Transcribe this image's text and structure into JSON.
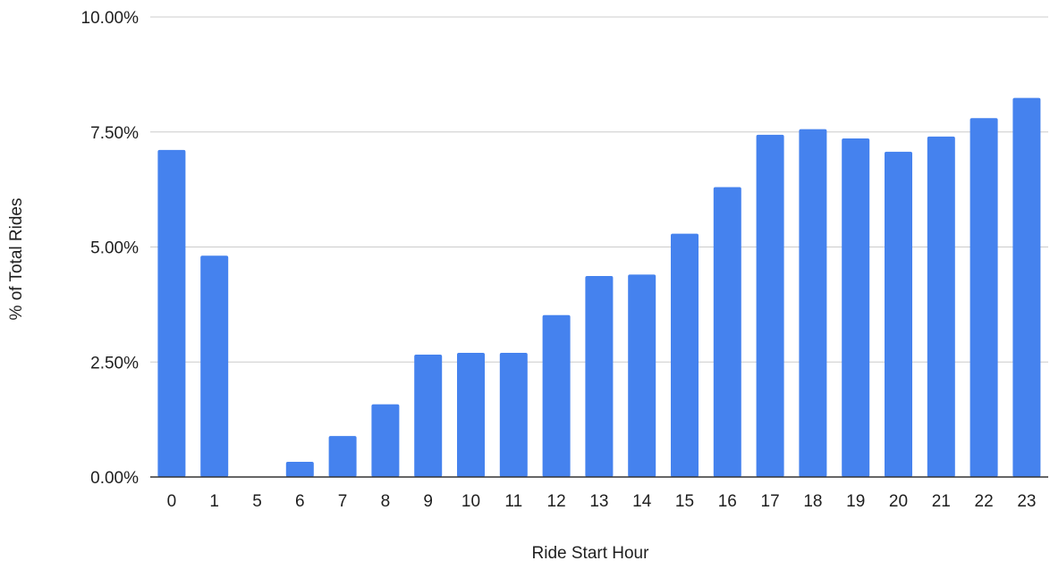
{
  "chart_data": {
    "type": "bar",
    "title": "",
    "xlabel": "Ride Start Hour",
    "ylabel": "% of Total Rides",
    "categories": [
      "0",
      "1",
      "5",
      "6",
      "7",
      "8",
      "9",
      "10",
      "11",
      "12",
      "13",
      "14",
      "15",
      "16",
      "17",
      "18",
      "19",
      "20",
      "21",
      "22",
      "23"
    ],
    "series": [
      {
        "values": [
          7.11,
          4.81,
          0.0,
          0.33,
          0.89,
          1.58,
          2.66,
          2.7,
          2.7,
          3.52,
          4.37,
          4.4,
          5.29,
          6.3,
          7.44,
          7.56,
          7.36,
          7.07,
          7.4,
          7.8,
          8.24
        ],
        "color": "#4582ee"
      }
    ],
    "ylim": [
      0,
      10
    ],
    "yticks": [
      {
        "value": 0,
        "label": "0.00%"
      },
      {
        "value": 2.5,
        "label": "2.50%"
      },
      {
        "value": 5,
        "label": "5.00%"
      },
      {
        "value": 7.5,
        "label": "7.50%"
      },
      {
        "value": 10,
        "label": "10.00%"
      }
    ],
    "grid": true,
    "legend": "none",
    "colors": {
      "bar": "#4582ee",
      "grid": "#cccccc",
      "baseline": "#333333",
      "text": "#1f1f1f"
    }
  }
}
